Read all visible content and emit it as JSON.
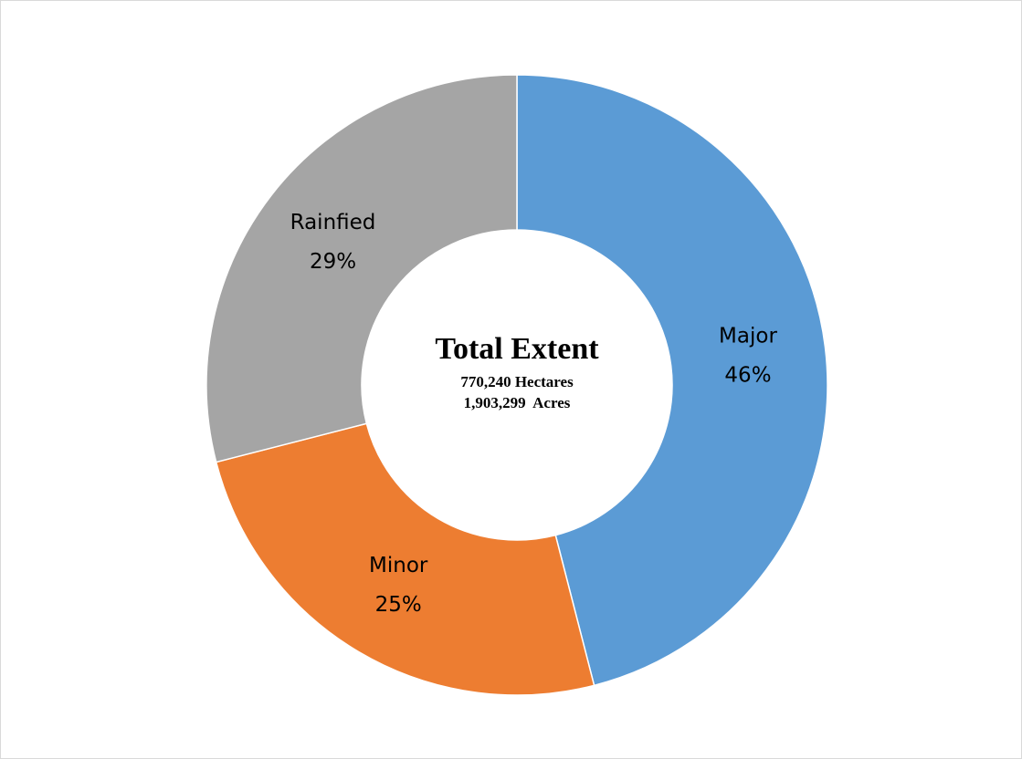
{
  "chart_data": {
    "type": "pie",
    "donut": true,
    "categories": [
      "Major",
      "Minor",
      "Rainfied"
    ],
    "values": [
      46,
      25,
      29
    ],
    "value_labels": [
      "46%",
      "25%",
      "29%"
    ],
    "colors": [
      "#5b9bd5",
      "#ed7d31",
      "#a5a5a5"
    ],
    "center_text": {
      "title": "Total Extent",
      "lines": [
        "770,240 Hectares",
        "1,903,299  Acres"
      ]
    }
  }
}
